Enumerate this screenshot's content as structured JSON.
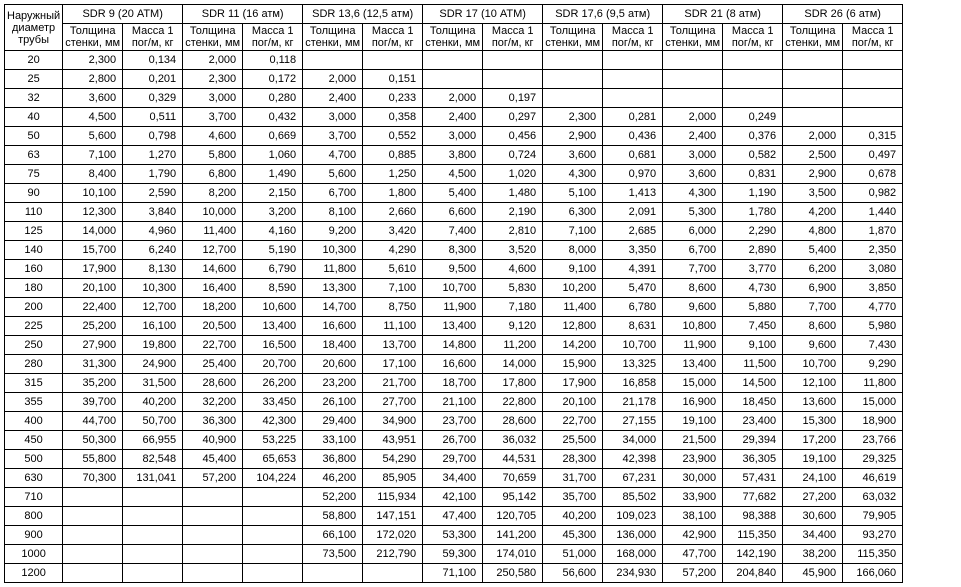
{
  "title_lines": [
    "Наружный",
    "диаметр",
    "трубы"
  ],
  "sub_th": "Толщина стенки, мм",
  "sub_m": "Масса 1 пог/м, кг",
  "groups": [
    {
      "name": "SDR 9 (20 АТМ)"
    },
    {
      "name": "SDR 11 (16 атм)"
    },
    {
      "name": "SDR 13,6 (12,5 атм)"
    },
    {
      "name": "SDR 17 (10 АТМ)"
    },
    {
      "name": "SDR 17,6 (9,5 атм)"
    },
    {
      "name": "SDR 21 (8 атм)"
    },
    {
      "name": "SDR 26 (6 атм)"
    }
  ],
  "diameters": [
    20,
    25,
    32,
    40,
    50,
    63,
    75,
    90,
    110,
    125,
    140,
    160,
    180,
    200,
    225,
    250,
    280,
    315,
    355,
    400,
    450,
    500,
    630,
    710,
    800,
    900,
    1000,
    1200
  ],
  "data": {
    "20": [
      [
        "2,300",
        "0,134"
      ],
      [
        "2,000",
        "0,118"
      ],
      null,
      null,
      null,
      null,
      null
    ],
    "25": [
      [
        "2,800",
        "0,201"
      ],
      [
        "2,300",
        "0,172"
      ],
      [
        "2,000",
        "0,151"
      ],
      null,
      null,
      null,
      null
    ],
    "32": [
      [
        "3,600",
        "0,329"
      ],
      [
        "3,000",
        "0,280"
      ],
      [
        "2,400",
        "0,233"
      ],
      [
        "2,000",
        "0,197"
      ],
      null,
      null,
      null
    ],
    "40": [
      [
        "4,500",
        "0,511"
      ],
      [
        "3,700",
        "0,432"
      ],
      [
        "3,000",
        "0,358"
      ],
      [
        "2,400",
        "0,297"
      ],
      [
        "2,300",
        "0,281"
      ],
      [
        "2,000",
        "0,249"
      ],
      null
    ],
    "50": [
      [
        "5,600",
        "0,798"
      ],
      [
        "4,600",
        "0,669"
      ],
      [
        "3,700",
        "0,552"
      ],
      [
        "3,000",
        "0,456"
      ],
      [
        "2,900",
        "0,436"
      ],
      [
        "2,400",
        "0,376"
      ],
      [
        "2,000",
        "0,315"
      ]
    ],
    "63": [
      [
        "7,100",
        "1,270"
      ],
      [
        "5,800",
        "1,060"
      ],
      [
        "4,700",
        "0,885"
      ],
      [
        "3,800",
        "0,724"
      ],
      [
        "3,600",
        "0,681"
      ],
      [
        "3,000",
        "0,582"
      ],
      [
        "2,500",
        "0,497"
      ]
    ],
    "75": [
      [
        "8,400",
        "1,790"
      ],
      [
        "6,800",
        "1,490"
      ],
      [
        "5,600",
        "1,250"
      ],
      [
        "4,500",
        "1,020"
      ],
      [
        "4,300",
        "0,970"
      ],
      [
        "3,600",
        "0,831"
      ],
      [
        "2,900",
        "0,678"
      ]
    ],
    "90": [
      [
        "10,100",
        "2,590"
      ],
      [
        "8,200",
        "2,150"
      ],
      [
        "6,700",
        "1,800"
      ],
      [
        "5,400",
        "1,480"
      ],
      [
        "5,100",
        "1,413"
      ],
      [
        "4,300",
        "1,190"
      ],
      [
        "3,500",
        "0,982"
      ]
    ],
    "110": [
      [
        "12,300",
        "3,840"
      ],
      [
        "10,000",
        "3,200"
      ],
      [
        "8,100",
        "2,660"
      ],
      [
        "6,600",
        "2,190"
      ],
      [
        "6,300",
        "2,091"
      ],
      [
        "5,300",
        "1,780"
      ],
      [
        "4,200",
        "1,440"
      ]
    ],
    "125": [
      [
        "14,000",
        "4,960"
      ],
      [
        "11,400",
        "4,160"
      ],
      [
        "9,200",
        "3,420"
      ],
      [
        "7,400",
        "2,810"
      ],
      [
        "7,100",
        "2,685"
      ],
      [
        "6,000",
        "2,290"
      ],
      [
        "4,800",
        "1,870"
      ]
    ],
    "140": [
      [
        "15,700",
        "6,240"
      ],
      [
        "12,700",
        "5,190"
      ],
      [
        "10,300",
        "4,290"
      ],
      [
        "8,300",
        "3,520"
      ],
      [
        "8,000",
        "3,350"
      ],
      [
        "6,700",
        "2,890"
      ],
      [
        "5,400",
        "2,350"
      ]
    ],
    "160": [
      [
        "17,900",
        "8,130"
      ],
      [
        "14,600",
        "6,790"
      ],
      [
        "11,800",
        "5,610"
      ],
      [
        "9,500",
        "4,600"
      ],
      [
        "9,100",
        "4,391"
      ],
      [
        "7,700",
        "3,770"
      ],
      [
        "6,200",
        "3,080"
      ]
    ],
    "180": [
      [
        "20,100",
        "10,300"
      ],
      [
        "16,400",
        "8,590"
      ],
      [
        "13,300",
        "7,100"
      ],
      [
        "10,700",
        "5,830"
      ],
      [
        "10,200",
        "5,470"
      ],
      [
        "8,600",
        "4,730"
      ],
      [
        "6,900",
        "3,850"
      ]
    ],
    "200": [
      [
        "22,400",
        "12,700"
      ],
      [
        "18,200",
        "10,600"
      ],
      [
        "14,700",
        "8,750"
      ],
      [
        "11,900",
        "7,180"
      ],
      [
        "11,400",
        "6,780"
      ],
      [
        "9,600",
        "5,880"
      ],
      [
        "7,700",
        "4,770"
      ]
    ],
    "225": [
      [
        "25,200",
        "16,100"
      ],
      [
        "20,500",
        "13,400"
      ],
      [
        "16,600",
        "11,100"
      ],
      [
        "13,400",
        "9,120"
      ],
      [
        "12,800",
        "8,631"
      ],
      [
        "10,800",
        "7,450"
      ],
      [
        "8,600",
        "5,980"
      ]
    ],
    "250": [
      [
        "27,900",
        "19,800"
      ],
      [
        "22,700",
        "16,500"
      ],
      [
        "18,400",
        "13,700"
      ],
      [
        "14,800",
        "11,200"
      ],
      [
        "14,200",
        "10,700"
      ],
      [
        "11,900",
        "9,100"
      ],
      [
        "9,600",
        "7,430"
      ]
    ],
    "280": [
      [
        "31,300",
        "24,900"
      ],
      [
        "25,400",
        "20,700"
      ],
      [
        "20,600",
        "17,100"
      ],
      [
        "16,600",
        "14,000"
      ],
      [
        "15,900",
        "13,325"
      ],
      [
        "13,400",
        "11,500"
      ],
      [
        "10,700",
        "9,290"
      ]
    ],
    "315": [
      [
        "35,200",
        "31,500"
      ],
      [
        "28,600",
        "26,200"
      ],
      [
        "23,200",
        "21,700"
      ],
      [
        "18,700",
        "17,800"
      ],
      [
        "17,900",
        "16,858"
      ],
      [
        "15,000",
        "14,500"
      ],
      [
        "12,100",
        "11,800"
      ]
    ],
    "355": [
      [
        "39,700",
        "40,200"
      ],
      [
        "32,200",
        "33,450"
      ],
      [
        "26,100",
        "27,700"
      ],
      [
        "21,100",
        "22,800"
      ],
      [
        "20,100",
        "21,178"
      ],
      [
        "16,900",
        "18,450"
      ],
      [
        "13,600",
        "15,000"
      ]
    ],
    "400": [
      [
        "44,700",
        "50,700"
      ],
      [
        "36,300",
        "42,300"
      ],
      [
        "29,400",
        "34,900"
      ],
      [
        "23,700",
        "28,600"
      ],
      [
        "22,700",
        "27,155"
      ],
      [
        "19,100",
        "23,400"
      ],
      [
        "15,300",
        "18,900"
      ]
    ],
    "450": [
      [
        "50,300",
        "66,955"
      ],
      [
        "40,900",
        "53,225"
      ],
      [
        "33,100",
        "43,951"
      ],
      [
        "26,700",
        "36,032"
      ],
      [
        "25,500",
        "34,000"
      ],
      [
        "21,500",
        "29,394"
      ],
      [
        "17,200",
        "23,766"
      ]
    ],
    "500": [
      [
        "55,800",
        "82,548"
      ],
      [
        "45,400",
        "65,653"
      ],
      [
        "36,800",
        "54,290"
      ],
      [
        "29,700",
        "44,531"
      ],
      [
        "28,300",
        "42,398"
      ],
      [
        "23,900",
        "36,305"
      ],
      [
        "19,100",
        "29,325"
      ]
    ],
    "630": [
      [
        "70,300",
        "131,041"
      ],
      [
        "57,200",
        "104,224"
      ],
      [
        "46,200",
        "85,905"
      ],
      [
        "34,400",
        "70,659"
      ],
      [
        "31,700",
        "67,231"
      ],
      [
        "30,000",
        "57,431"
      ],
      [
        "24,100",
        "46,619"
      ]
    ],
    "710": [
      null,
      null,
      [
        "52,200",
        "115,934"
      ],
      [
        "42,100",
        "95,142"
      ],
      [
        "35,700",
        "85,502"
      ],
      [
        "33,900",
        "77,682"
      ],
      [
        "27,200",
        "63,032"
      ]
    ],
    "800": [
      null,
      null,
      [
        "58,800",
        "147,151"
      ],
      [
        "47,400",
        "120,705"
      ],
      [
        "40,200",
        "109,023"
      ],
      [
        "38,100",
        "98,388"
      ],
      [
        "30,600",
        "79,905"
      ]
    ],
    "900": [
      null,
      null,
      [
        "66,100",
        "172,020"
      ],
      [
        "53,300",
        "141,200"
      ],
      [
        "45,300",
        "136,000"
      ],
      [
        "42,900",
        "115,350"
      ],
      [
        "34,400",
        "93,270"
      ]
    ],
    "1000": [
      null,
      null,
      [
        "73,500",
        "212,790"
      ],
      [
        "59,300",
        "174,010"
      ],
      [
        "51,000",
        "168,000"
      ],
      [
        "47,700",
        "142,190"
      ],
      [
        "38,200",
        "115,350"
      ]
    ],
    "1200": [
      null,
      null,
      null,
      [
        "71,100",
        "250,580"
      ],
      [
        "56,600",
        "234,930"
      ],
      [
        "57,200",
        "204,840"
      ],
      [
        "45,900",
        "166,060"
      ]
    ]
  }
}
